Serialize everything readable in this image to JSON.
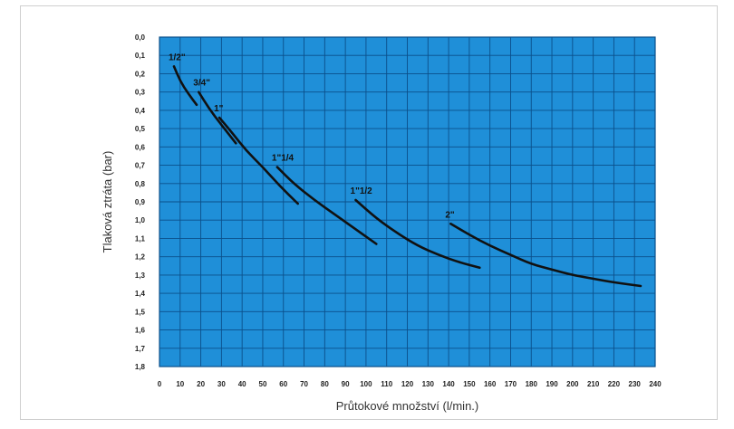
{
  "chart_data": {
    "type": "line",
    "title": "",
    "xlabel": "Průtokové množství (l/min.)",
    "ylabel": "Tlaková ztráta (bar)",
    "xlim": [
      0,
      240
    ],
    "ylim": [
      0.0,
      1.8
    ],
    "y_inverted": true,
    "xticks": [
      "0",
      "10",
      "20",
      "30",
      "40",
      "50",
      "60",
      "70",
      "80",
      "90",
      "100",
      "110",
      "120",
      "130",
      "140",
      "150",
      "160",
      "170",
      "180",
      "190",
      "200",
      "210",
      "220",
      "230",
      "240"
    ],
    "yticks": [
      "0,0",
      "0,1",
      "0,2",
      "0,3",
      "0,4",
      "0,5",
      "0,6",
      "0,7",
      "0,8",
      "0,9",
      "1,0",
      "1,1",
      "1,2",
      "1,3",
      "1,4",
      "1,5",
      "1,6",
      "1,7",
      "1,8"
    ],
    "grid": true,
    "colors": {
      "grid_fill": "#1f8fd8",
      "grid_line": "#0b4f8a",
      "curve": "#111111",
      "axis_text": "#222222",
      "label_text": "#333333"
    },
    "series": [
      {
        "name": "1/2\"",
        "x": [
          7,
          10,
          14,
          18
        ],
        "y": [
          0.16,
          0.24,
          0.31,
          0.37
        ]
      },
      {
        "name": "3/4\"",
        "x": [
          19,
          24,
          30,
          37
        ],
        "y": [
          0.3,
          0.39,
          0.48,
          0.58
        ]
      },
      {
        "name": "1\"",
        "x": [
          29,
          35,
          42,
          50,
          58,
          67
        ],
        "y": [
          0.44,
          0.52,
          0.62,
          0.71,
          0.81,
          0.91
        ]
      },
      {
        "name": "1\"1/4",
        "x": [
          57,
          65,
          75,
          85,
          95,
          105
        ],
        "y": [
          0.71,
          0.8,
          0.89,
          0.97,
          1.05,
          1.13
        ]
      },
      {
        "name": "1\"1/2",
        "x": [
          95,
          105,
          115,
          125,
          135,
          145,
          155
        ],
        "y": [
          0.89,
          0.99,
          1.07,
          1.14,
          1.19,
          1.23,
          1.26
        ]
      },
      {
        "name": "2\"",
        "x": [
          141,
          150,
          160,
          170,
          180,
          190,
          200,
          210,
          220,
          233
        ],
        "y": [
          1.02,
          1.08,
          1.14,
          1.19,
          1.24,
          1.27,
          1.3,
          1.32,
          1.34,
          1.36
        ]
      }
    ]
  }
}
